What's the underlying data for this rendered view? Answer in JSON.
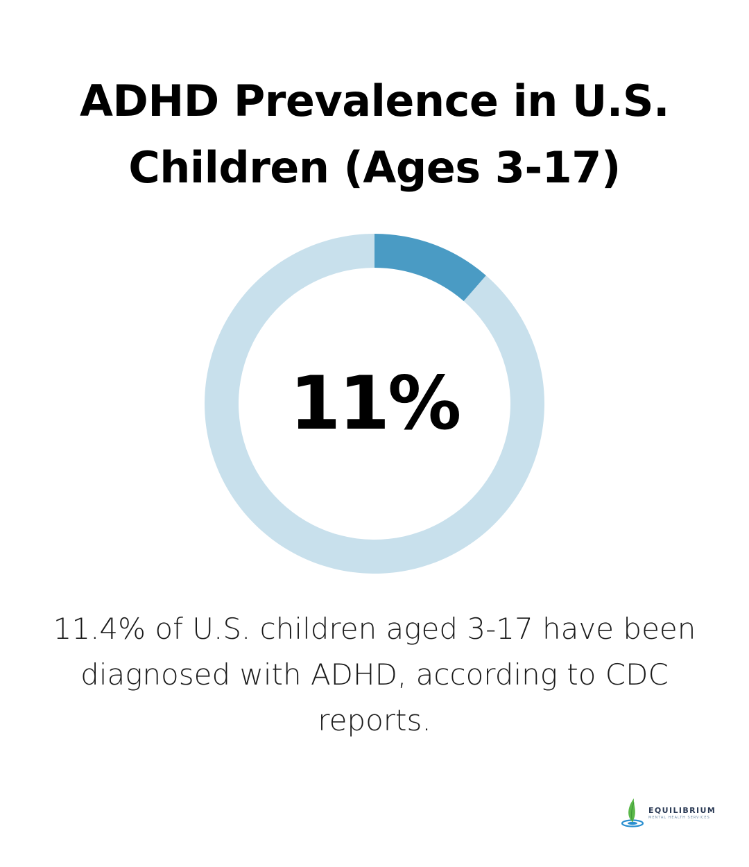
{
  "title": "ADHD Prevalence in U.S. Children (Ages 3-17)",
  "caption": "11.4% of U.S. children aged 3-17 have been diagnosed with ADHD, according to CDC reports.",
  "chart_data": {
    "type": "pie",
    "style": "donut",
    "center_label": "11%",
    "slices": [
      {
        "label": "",
        "value": 11.4,
        "color": "#4a9bc4"
      },
      {
        "label": "",
        "value": 88.6,
        "color": "#c8e0ec"
      }
    ]
  },
  "logo": {
    "name": "EQUILIBRIUM",
    "tagline": "MENTAL HEALTH SERVICES",
    "colors": {
      "leaf": "#5bb84a",
      "drop": "#2a8fd0"
    }
  }
}
